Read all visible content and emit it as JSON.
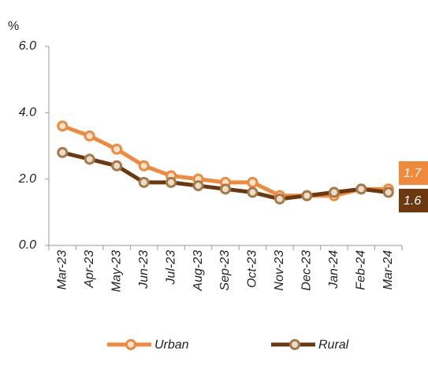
{
  "chart_data": {
    "type": "line",
    "y_label": "%",
    "categories": [
      "Mar-23",
      "Apr-23",
      "May-23",
      "Jun-23",
      "Jul-23",
      "Aug-23",
      "Sep-23",
      "Oct-23",
      "Nov-23",
      "Dec-23",
      "Jan-24",
      "Feb-24",
      "Mar-24"
    ],
    "series": [
      {
        "name": "Urban",
        "color": "#f0893b",
        "marker_fill": "#f7e3cf",
        "values": [
          3.6,
          3.3,
          2.9,
          2.4,
          2.1,
          2.0,
          1.9,
          1.9,
          1.5,
          1.5,
          1.5,
          1.7,
          1.7
        ]
      },
      {
        "name": "Rural",
        "color": "#6b3810",
        "marker_fill": "#e9dcc8",
        "marker_stroke": "#a57a48",
        "values": [
          2.8,
          2.6,
          2.4,
          1.9,
          1.9,
          1.8,
          1.7,
          1.6,
          1.4,
          1.5,
          1.6,
          1.7,
          1.6
        ]
      }
    ],
    "ylim": [
      0,
      6
    ],
    "yticks": [
      {
        "value": 0,
        "label": "0.0"
      },
      {
        "value": 2,
        "label": "2.0"
      },
      {
        "value": 4,
        "label": "4.0"
      },
      {
        "value": 6,
        "label": "6.0"
      }
    ],
    "legend": "bottom"
  }
}
